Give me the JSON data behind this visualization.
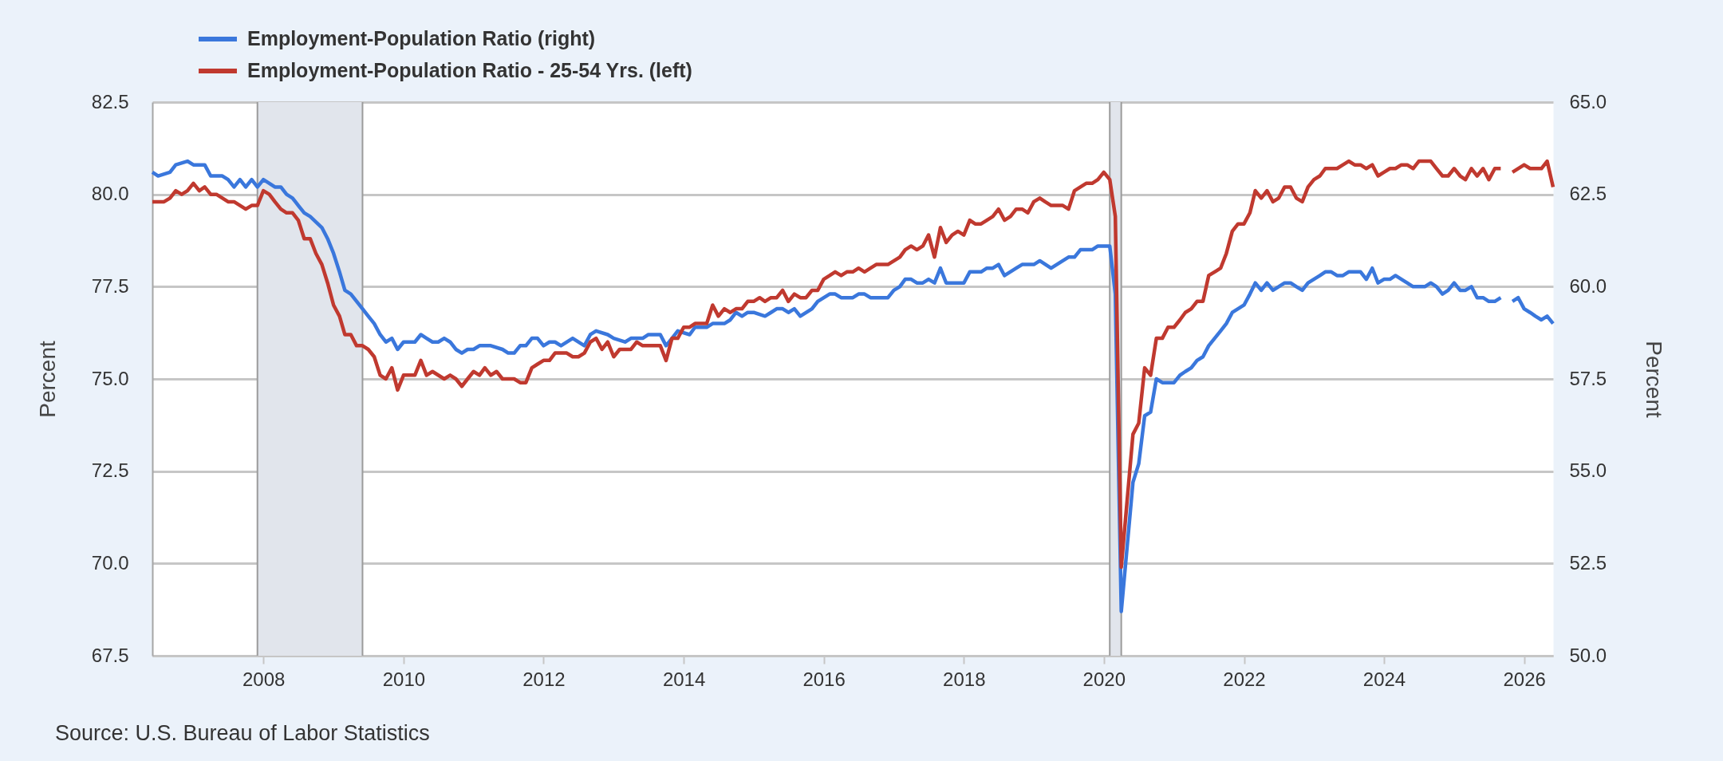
{
  "chart_data": {
    "type": "line",
    "ylabel": "Percent",
    "y2label": "Percent",
    "xlim": [
      "2006-06",
      "2026-06"
    ],
    "xticks": [
      "2008",
      "2010",
      "2012",
      "2014",
      "2016",
      "2018",
      "2020",
      "2022",
      "2024",
      "2026"
    ],
    "ylim": [
      67.5,
      82.5
    ],
    "yticks": [
      67.5,
      {
        "value": 70,
        "label": "70.0"
      },
      72.5,
      {
        "value": 75,
        "label": "75.0"
      },
      77.5,
      {
        "value": 80,
        "label": "80.0"
      },
      82.5
    ],
    "y2lim": [
      50,
      65
    ],
    "y2ticks": [
      {
        "value": 50,
        "label": "50.0"
      },
      52.5,
      {
        "value": 55,
        "label": "55.0"
      },
      57.5,
      {
        "value": 60,
        "label": "60.0"
      },
      62.5,
      {
        "value": 65,
        "label": "65.0"
      }
    ],
    "grid": "y",
    "legend": "top left",
    "bands": [
      {
        "axis": "x",
        "from": "2007-12",
        "to": "2009-06",
        "color": "#e1e5ec"
      },
      {
        "axis": "x",
        "from": "2020-02",
        "to": "2020-04",
        "color": "#e1e5ec"
      }
    ],
    "series": [
      {
        "name": "Employment-Population Ratio (right)",
        "color": "#3a77dc",
        "axis": "y2",
        "x": [
          "2006-06",
          "2006-07",
          "2006-09",
          "2006-10",
          "2006-12",
          "2007-01",
          "2007-03",
          "2007-04",
          "2007-06",
          "2007-07",
          "2007-08",
          "2007-09",
          "2007-10",
          "2007-11",
          "2007-12",
          "2008-01",
          "2008-02",
          "2008-03",
          "2008-04",
          "2008-05",
          "2008-06",
          "2008-07",
          "2008-08",
          "2008-09",
          "2008-11",
          "2008-12",
          "2009-01",
          "2009-02",
          "2009-03",
          "2009-04",
          "2009-06",
          "2009-07",
          "2009-08",
          "2009-09",
          "2009-10",
          "2009-11",
          "2009-12",
          "2010-01",
          "2010-03",
          "2010-04",
          "2010-05",
          "2010-06",
          "2010-07",
          "2010-08",
          "2010-09",
          "2010-10",
          "2010-11",
          "2010-12",
          "2011-01",
          "2011-02",
          "2011-04",
          "2011-06",
          "2011-07",
          "2011-08",
          "2011-09",
          "2011-10",
          "2011-11",
          "2011-12",
          "2012-01",
          "2012-02",
          "2012-03",
          "2012-04",
          "2012-06",
          "2012-08",
          "2012-09",
          "2012-10",
          "2012-12",
          "2013-01",
          "2013-03",
          "2013-04",
          "2013-06",
          "2013-07",
          "2013-09",
          "2013-10",
          "2013-11",
          "2013-12",
          "2014-02",
          "2014-03",
          "2014-05",
          "2014-06",
          "2014-08",
          "2014-09",
          "2014-10",
          "2014-11",
          "2014-12",
          "2015-01",
          "2015-03",
          "2015-04",
          "2015-05",
          "2015-06",
          "2015-07",
          "2015-08",
          "2015-09",
          "2015-11",
          "2015-12",
          "2016-02",
          "2016-03",
          "2016-04",
          "2016-06",
          "2016-07",
          "2016-08",
          "2016-09",
          "2016-12",
          "2017-01",
          "2017-02",
          "2017-03",
          "2017-04",
          "2017-05",
          "2017-06",
          "2017-07",
          "2017-08",
          "2017-09",
          "2017-10",
          "2018-01",
          "2018-02",
          "2018-04",
          "2018-05",
          "2018-06",
          "2018-07",
          "2018-08",
          "2018-10",
          "2018-11",
          "2019-01",
          "2019-02",
          "2019-04",
          "2019-06",
          "2019-07",
          "2019-08",
          "2019-09",
          "2019-11",
          "2019-12",
          "2020-02",
          "2020-03",
          "2020-04",
          "2020-06",
          "2020-07",
          "2020-08",
          "2020-09",
          "2020-10",
          "2020-11",
          "2021-01",
          "2021-02",
          "2021-03",
          "2021-04",
          "2021-05",
          "2021-06",
          "2021-07",
          "2021-08",
          "2021-09",
          "2021-10",
          "2021-11",
          "2022-01",
          "2022-02",
          "2022-03",
          "2022-04",
          "2022-05",
          "2022-06",
          "2022-07",
          "2022-08",
          "2022-09",
          "2022-10",
          "2022-11",
          "2022-12",
          "2023-02",
          "2023-03",
          "2023-04",
          "2023-05",
          "2023-06",
          "2023-07",
          "2023-09",
          "2023-10",
          "2023-11",
          "2023-12",
          "2024-01",
          "2024-02",
          "2024-03",
          "2024-04",
          "2024-05",
          "2024-06",
          "2024-08",
          "2024-09",
          "2024-10",
          "2024-11",
          "2024-12",
          "2025-01",
          "2025-02",
          "2025-03",
          "2025-04",
          "2025-05",
          "2025-06",
          "2025-07",
          "2025-08",
          "2025-09",
          "2025-10",
          "2025-11",
          "2025-12",
          "2026-01",
          "2026-02",
          "2026-03",
          "2026-04",
          "2026-05",
          "2026-06"
        ],
        "values": [
          63.1,
          63.0,
          63.1,
          63.3,
          63.4,
          63.3,
          63.3,
          63.0,
          63.0,
          62.9,
          62.7,
          62.9,
          62.7,
          62.9,
          62.7,
          62.9,
          62.8,
          62.7,
          62.7,
          62.5,
          62.4,
          62.2,
          62.0,
          61.9,
          61.6,
          61.3,
          60.9,
          60.4,
          59.9,
          59.8,
          59.4,
          59.2,
          59.0,
          58.7,
          58.5,
          58.6,
          58.3,
          58.5,
          58.5,
          58.7,
          58.6,
          58.5,
          58.5,
          58.6,
          58.5,
          58.3,
          58.2,
          58.3,
          58.3,
          58.4,
          58.4,
          58.3,
          58.2,
          58.2,
          58.4,
          58.4,
          58.6,
          58.6,
          58.4,
          58.5,
          58.5,
          58.4,
          58.6,
          58.4,
          58.7,
          58.8,
          58.7,
          58.6,
          58.5,
          58.6,
          58.6,
          58.7,
          58.7,
          58.4,
          58.6,
          58.8,
          58.7,
          58.9,
          58.9,
          59.0,
          59.0,
          59.1,
          59.3,
          59.2,
          59.3,
          59.3,
          59.2,
          59.3,
          59.4,
          59.4,
          59.3,
          59.4,
          59.2,
          59.4,
          59.6,
          59.8,
          59.8,
          59.7,
          59.7,
          59.8,
          59.8,
          59.7,
          59.7,
          59.9,
          60.0,
          60.2,
          60.2,
          60.1,
          60.1,
          60.2,
          60.1,
          60.5,
          60.1,
          60.1,
          60.4,
          60.4,
          60.5,
          60.5,
          60.6,
          60.3,
          60.5,
          60.6,
          60.6,
          60.7,
          60.5,
          60.7,
          60.8,
          60.8,
          61.0,
          61.0,
          61.1,
          61.1,
          59.8,
          51.2,
          54.7,
          55.2,
          56.5,
          56.6,
          57.5,
          57.4,
          57.4,
          57.6,
          57.7,
          57.8,
          58.0,
          58.1,
          58.4,
          58.6,
          58.8,
          59.0,
          59.3,
          59.5,
          59.8,
          60.1,
          59.9,
          60.1,
          59.9,
          60.0,
          60.1,
          60.1,
          60.0,
          59.9,
          60.1,
          60.3,
          60.4,
          60.4,
          60.3,
          60.3,
          60.4,
          60.4,
          60.2,
          60.5,
          60.1,
          60.2,
          60.2,
          60.3,
          60.2,
          60.1,
          60.0,
          60.0,
          60.1,
          60.0,
          59.8,
          59.9,
          60.1,
          59.9,
          59.9,
          60.0,
          59.7,
          59.7,
          59.6,
          59.6,
          59.7,
          null,
          59.6,
          59.7,
          59.4,
          59.3,
          59.2,
          59.1,
          59.2,
          59.0
        ]
      },
      {
        "name": "Employment-Population Ratio - 25-54 Yrs. (left)",
        "color": "#c0392f",
        "axis": "y",
        "x": [
          "2006-06",
          "2006-08",
          "2006-09",
          "2006-10",
          "2006-11",
          "2006-12",
          "2007-01",
          "2007-02",
          "2007-03",
          "2007-04",
          "2007-05",
          "2007-07",
          "2007-08",
          "2007-10",
          "2007-11",
          "2007-12",
          "2008-01",
          "2008-02",
          "2008-03",
          "2008-04",
          "2008-05",
          "2008-06",
          "2008-07",
          "2008-08",
          "2008-09",
          "2008-10",
          "2008-11",
          "2008-12",
          "2009-01",
          "2009-02",
          "2009-03",
          "2009-04",
          "2009-05",
          "2009-06",
          "2009-07",
          "2009-08",
          "2009-09",
          "2009-10",
          "2009-11",
          "2009-12",
          "2010-01",
          "2010-03",
          "2010-04",
          "2010-05",
          "2010-06",
          "2010-08",
          "2010-09",
          "2010-10",
          "2010-11",
          "2010-12",
          "2011-01",
          "2011-02",
          "2011-03",
          "2011-04",
          "2011-05",
          "2011-06",
          "2011-08",
          "2011-09",
          "2011-10",
          "2011-11",
          "2011-12",
          "2012-01",
          "2012-02",
          "2012-03",
          "2012-05",
          "2012-06",
          "2012-07",
          "2012-08",
          "2012-09",
          "2012-10",
          "2012-11",
          "2012-12",
          "2013-01",
          "2013-02",
          "2013-04",
          "2013-05",
          "2013-06",
          "2013-07",
          "2013-09",
          "2013-10",
          "2013-11",
          "2013-12",
          "2014-01",
          "2014-02",
          "2014-03",
          "2014-05",
          "2014-06",
          "2014-07",
          "2014-08",
          "2014-09",
          "2014-10",
          "2014-11",
          "2014-12",
          "2015-01",
          "2015-02",
          "2015-03",
          "2015-04",
          "2015-05",
          "2015-06",
          "2015-07",
          "2015-08",
          "2015-09",
          "2015-10",
          "2015-11",
          "2015-12",
          "2016-01",
          "2016-02",
          "2016-03",
          "2016-04",
          "2016-05",
          "2016-06",
          "2016-07",
          "2016-08",
          "2016-09",
          "2016-10",
          "2016-12",
          "2017-02",
          "2017-03",
          "2017-04",
          "2017-05",
          "2017-06",
          "2017-07",
          "2017-08",
          "2017-09",
          "2017-10",
          "2017-11",
          "2017-12",
          "2018-01",
          "2018-02",
          "2018-03",
          "2018-04",
          "2018-05",
          "2018-06",
          "2018-07",
          "2018-08",
          "2018-09",
          "2018-10",
          "2018-11",
          "2018-12",
          "2019-01",
          "2019-02",
          "2019-03",
          "2019-04",
          "2019-06",
          "2019-07",
          "2019-08",
          "2019-09",
          "2019-10",
          "2019-11",
          "2019-12",
          "2020-01",
          "2020-02",
          "2020-03",
          "2020-04",
          "2020-06",
          "2020-07",
          "2020-08",
          "2020-09",
          "2020-10",
          "2020-11",
          "2020-12",
          "2021-01",
          "2021-02",
          "2021-03",
          "2021-04",
          "2021-05",
          "2021-06",
          "2021-07",
          "2021-08",
          "2021-09",
          "2021-10",
          "2021-11",
          "2021-12",
          "2022-01",
          "2022-02",
          "2022-03",
          "2022-04",
          "2022-05",
          "2022-06",
          "2022-07",
          "2022-08",
          "2022-09",
          "2022-10",
          "2022-11",
          "2022-12",
          "2023-01",
          "2023-02",
          "2023-03",
          "2023-05",
          "2023-06",
          "2023-07",
          "2023-08",
          "2023-09",
          "2023-10",
          "2023-11",
          "2023-12",
          "2024-01",
          "2024-02",
          "2024-03",
          "2024-04",
          "2024-05",
          "2024-06",
          "2024-07",
          "2024-09",
          "2024-10",
          "2024-11",
          "2024-12",
          "2025-01",
          "2025-02",
          "2025-03",
          "2025-04",
          "2025-05",
          "2025-06",
          "2025-07",
          "2025-08",
          "2025-09",
          "2025-10",
          "2025-11",
          "2026-01",
          "2026-02",
          "2026-04",
          "2026-05",
          "2026-06"
        ],
        "values": [
          79.8,
          79.8,
          79.9,
          80.1,
          80.0,
          80.1,
          80.3,
          80.1,
          80.2,
          80.0,
          80.0,
          79.8,
          79.8,
          79.6,
          79.7,
          79.7,
          80.1,
          80.0,
          79.8,
          79.6,
          79.5,
          79.5,
          79.3,
          78.8,
          78.8,
          78.4,
          78.1,
          77.6,
          77.0,
          76.7,
          76.2,
          76.2,
          75.9,
          75.9,
          75.8,
          75.6,
          75.1,
          75.0,
          75.3,
          74.7,
          75.1,
          75.1,
          75.5,
          75.1,
          75.2,
          75.0,
          75.1,
          75.0,
          74.8,
          75.0,
          75.2,
          75.1,
          75.3,
          75.1,
          75.2,
          75.0,
          75.0,
          74.9,
          74.9,
          75.3,
          75.4,
          75.5,
          75.5,
          75.7,
          75.7,
          75.6,
          75.6,
          75.7,
          76.0,
          76.1,
          75.8,
          76.0,
          75.6,
          75.8,
          75.8,
          76.0,
          75.9,
          75.9,
          75.9,
          75.5,
          76.1,
          76.1,
          76.4,
          76.4,
          76.5,
          76.5,
          77.0,
          76.7,
          76.9,
          76.8,
          76.9,
          76.9,
          77.1,
          77.1,
          77.2,
          77.1,
          77.2,
          77.2,
          77.4,
          77.1,
          77.3,
          77.2,
          77.2,
          77.4,
          77.4,
          77.7,
          77.8,
          77.9,
          77.8,
          77.9,
          77.9,
          78.0,
          77.9,
          78.0,
          78.1,
          78.1,
          78.3,
          78.5,
          78.6,
          78.5,
          78.6,
          78.9,
          78.3,
          79.1,
          78.7,
          78.9,
          79.0,
          78.9,
          79.3,
          79.2,
          79.2,
          79.3,
          79.4,
          79.6,
          79.3,
          79.4,
          79.6,
          79.6,
          79.5,
          79.8,
          79.9,
          79.8,
          79.7,
          79.7,
          79.6,
          80.1,
          80.2,
          80.3,
          80.3,
          80.4,
          80.6,
          80.4,
          79.4,
          69.9,
          73.5,
          73.8,
          75.3,
          75.1,
          76.1,
          76.1,
          76.4,
          76.4,
          76.6,
          76.8,
          76.9,
          77.1,
          77.1,
          77.8,
          77.9,
          78.0,
          78.4,
          79.0,
          79.2,
          79.2,
          79.5,
          80.1,
          79.9,
          80.1,
          79.8,
          79.9,
          80.2,
          80.2,
          79.9,
          79.8,
          80.2,
          80.4,
          80.5,
          80.7,
          80.7,
          80.8,
          80.9,
          80.8,
          80.8,
          80.7,
          80.8,
          80.5,
          80.6,
          80.7,
          80.7,
          80.8,
          80.8,
          80.7,
          80.9,
          80.9,
          80.7,
          80.5,
          80.5,
          80.7,
          80.5,
          80.4,
          80.7,
          80.5,
          80.7,
          80.4,
          80.7,
          80.7,
          null,
          80.6,
          80.8,
          80.7,
          80.7,
          80.9,
          80.2
        ]
      }
    ],
    "annotations": [
      "Source: U.S. Bureau of Labor Statistics"
    ]
  }
}
